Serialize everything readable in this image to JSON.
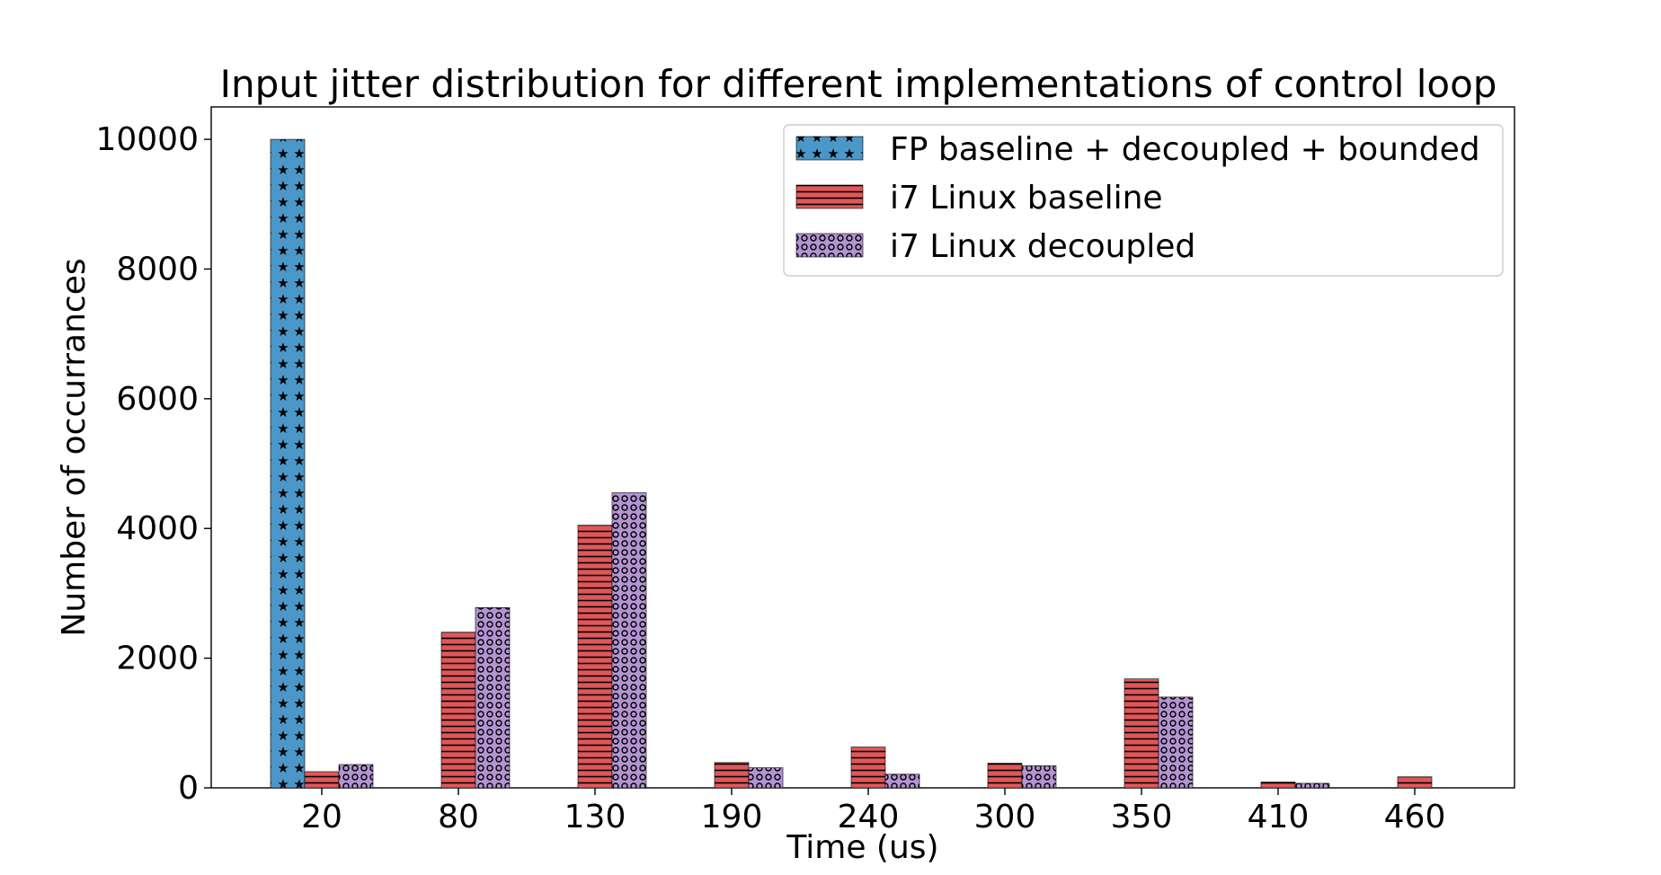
{
  "chart_data": {
    "type": "bar",
    "title": "Input jitter distribution for different implementations of control loop",
    "xlabel": "Time (us)",
    "ylabel": "Number of occurrances",
    "categories": [
      "20",
      "80",
      "130",
      "190",
      "240",
      "300",
      "350",
      "410",
      "460"
    ],
    "series": [
      {
        "name": "FP baseline + decoupled + bounded",
        "color": "#4b97c9",
        "pattern": "stars",
        "values": [
          10000,
          0,
          0,
          0,
          0,
          0,
          0,
          0,
          0
        ]
      },
      {
        "name": "i7 Linux baseline",
        "color": "#e0575a",
        "pattern": "horizontal-lines",
        "values": [
          250,
          2400,
          4050,
          390,
          630,
          380,
          1680,
          90,
          170
        ]
      },
      {
        "name": "i7 Linux decoupled",
        "color": "#b394d2",
        "pattern": "small-circles",
        "values": [
          360,
          2780,
          4550,
          310,
          210,
          340,
          1400,
          70,
          0
        ]
      }
    ],
    "yticks": [
      "0",
      "2000",
      "4000",
      "6000",
      "8000",
      "10000"
    ],
    "ylim": [
      0,
      10500
    ],
    "grid": false,
    "legend_position": "top-right"
  }
}
